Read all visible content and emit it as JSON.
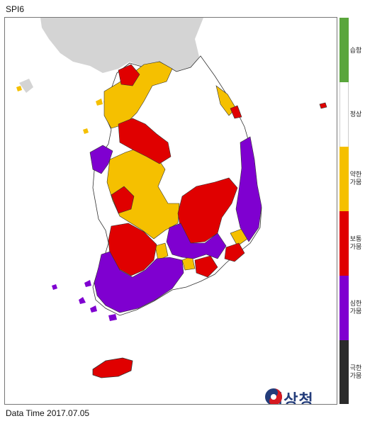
{
  "title": "SPI6",
  "footer": "Data Time 2017.07.05",
  "logo": {
    "text": "기상청"
  },
  "legend": [
    {
      "label_lines": [
        "습함"
      ],
      "color": "#5aa63c"
    },
    {
      "label_lines": [
        "정상"
      ],
      "color": "#ffffff"
    },
    {
      "label_lines": [
        "약한",
        "가뭄"
      ],
      "color": "#f5c000"
    },
    {
      "label_lines": [
        "보통",
        "가뭄"
      ],
      "color": "#e00000"
    },
    {
      "label_lines": [
        "심한",
        "가뭄"
      ],
      "color": "#7f00d0"
    },
    {
      "label_lines": [
        "극한",
        "가뭄"
      ],
      "color": "#2b2b2b"
    }
  ],
  "colors": {
    "neighbor_land": "#d4d4d4",
    "boundary": "#333333"
  }
}
